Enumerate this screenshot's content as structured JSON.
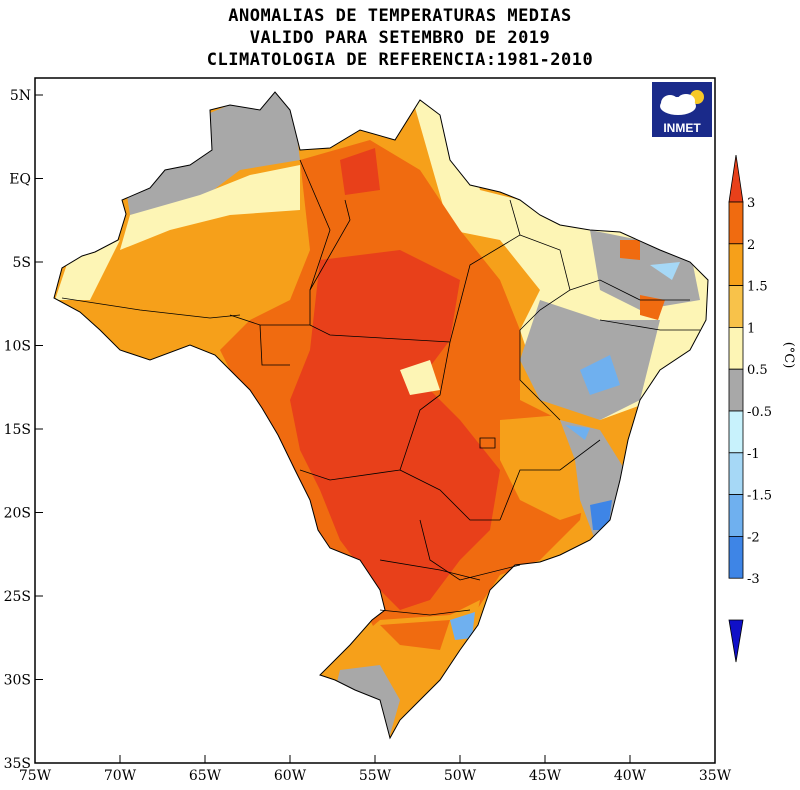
{
  "title": {
    "line1": "ANOMALIAS DE TEMPERATURAS MEDIAS",
    "line2": "VALIDO PARA SETEMBRO DE 2019",
    "line3": "CLIMATOLOGIA DE REFERENCIA:1981-2010"
  },
  "logo": {
    "text": "INMET",
    "icon": "cloud-sun-icon"
  },
  "axes": {
    "x_ticks": [
      "75W",
      "70W",
      "65W",
      "60W",
      "55W",
      "50W",
      "45W",
      "40W",
      "35W"
    ],
    "y_ticks": [
      "5N",
      "EQ",
      "5S",
      "10S",
      "15S",
      "20S",
      "25S",
      "30S",
      "35S"
    ],
    "lon_range": [
      -75,
      -35
    ],
    "lat_range": [
      -35,
      5
    ]
  },
  "colorbar": {
    "unit": "(°C)",
    "labels": [
      "3",
      "2",
      "1.5",
      "1",
      "0.5",
      "-0.5",
      "-1",
      "-1.5",
      "-2",
      "-3"
    ],
    "colors": [
      "#e8401a",
      "#f06b10",
      "#f6a01a",
      "#f8c24a",
      "#fdf5b5",
      "#a8a8a8",
      "#c8f2fc",
      "#a6d8f6",
      "#6fb0ef",
      "#3e85e6",
      "#1a52d6"
    ],
    "top_color": "#e8401a",
    "bottom_color": "#1010c8"
  }
}
